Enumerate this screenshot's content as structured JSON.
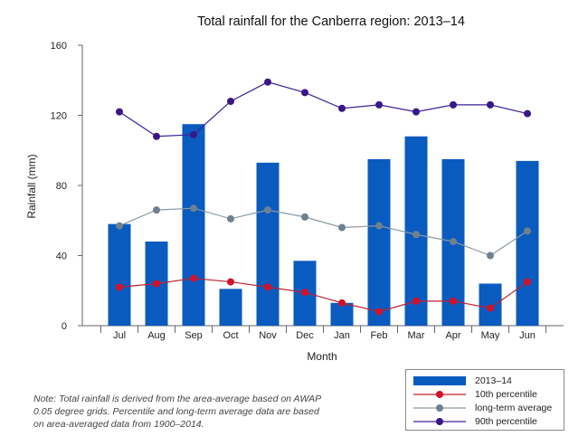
{
  "chart_data": {
    "type": "bar",
    "title": "Total rainfall for the Canberra region: 2013–14",
    "xlabel": "Month",
    "ylabel": "Rainfall (mm)",
    "ylim": [
      0,
      160
    ],
    "yticks": [
      0,
      40,
      80,
      120,
      160
    ],
    "categories": [
      "Jul",
      "Aug",
      "Sep",
      "Oct",
      "Nov",
      "Dec",
      "Jan",
      "Feb",
      "Mar",
      "Apr",
      "May",
      "Jun"
    ],
    "series": [
      {
        "name": "2013–14",
        "kind": "bar",
        "color": "#0a5bbf",
        "values": [
          58,
          48,
          115,
          21,
          93,
          37,
          13,
          95,
          108,
          95,
          24,
          94
        ]
      },
      {
        "name": "10th percentile",
        "kind": "line",
        "line_color": "#c0212c",
        "marker_color": "#d3102a",
        "values": [
          22,
          24,
          27,
          25,
          22,
          19,
          13,
          8,
          14,
          14,
          10,
          25
        ]
      },
      {
        "name": "long-term average",
        "kind": "line",
        "line_color": "#8a9aa3",
        "marker_color": "#6e8190",
        "values": [
          57,
          66,
          67,
          61,
          66,
          62,
          56,
          57,
          52,
          48,
          40,
          54
        ]
      },
      {
        "name": "90th percentile",
        "kind": "line",
        "line_color": "#3d1f9a",
        "marker_color": "#3a1788",
        "values": [
          122,
          108,
          109,
          128,
          139,
          133,
          124,
          126,
          122,
          126,
          126,
          121
        ]
      }
    ],
    "legend_position": "bottom-right",
    "grid": false
  },
  "note": "Note: Total rainfall is derived from the area-average based on AWAP 0.05 degree grids. Percentile and long-term average data are based on area-averaged data from 1900–2014."
}
